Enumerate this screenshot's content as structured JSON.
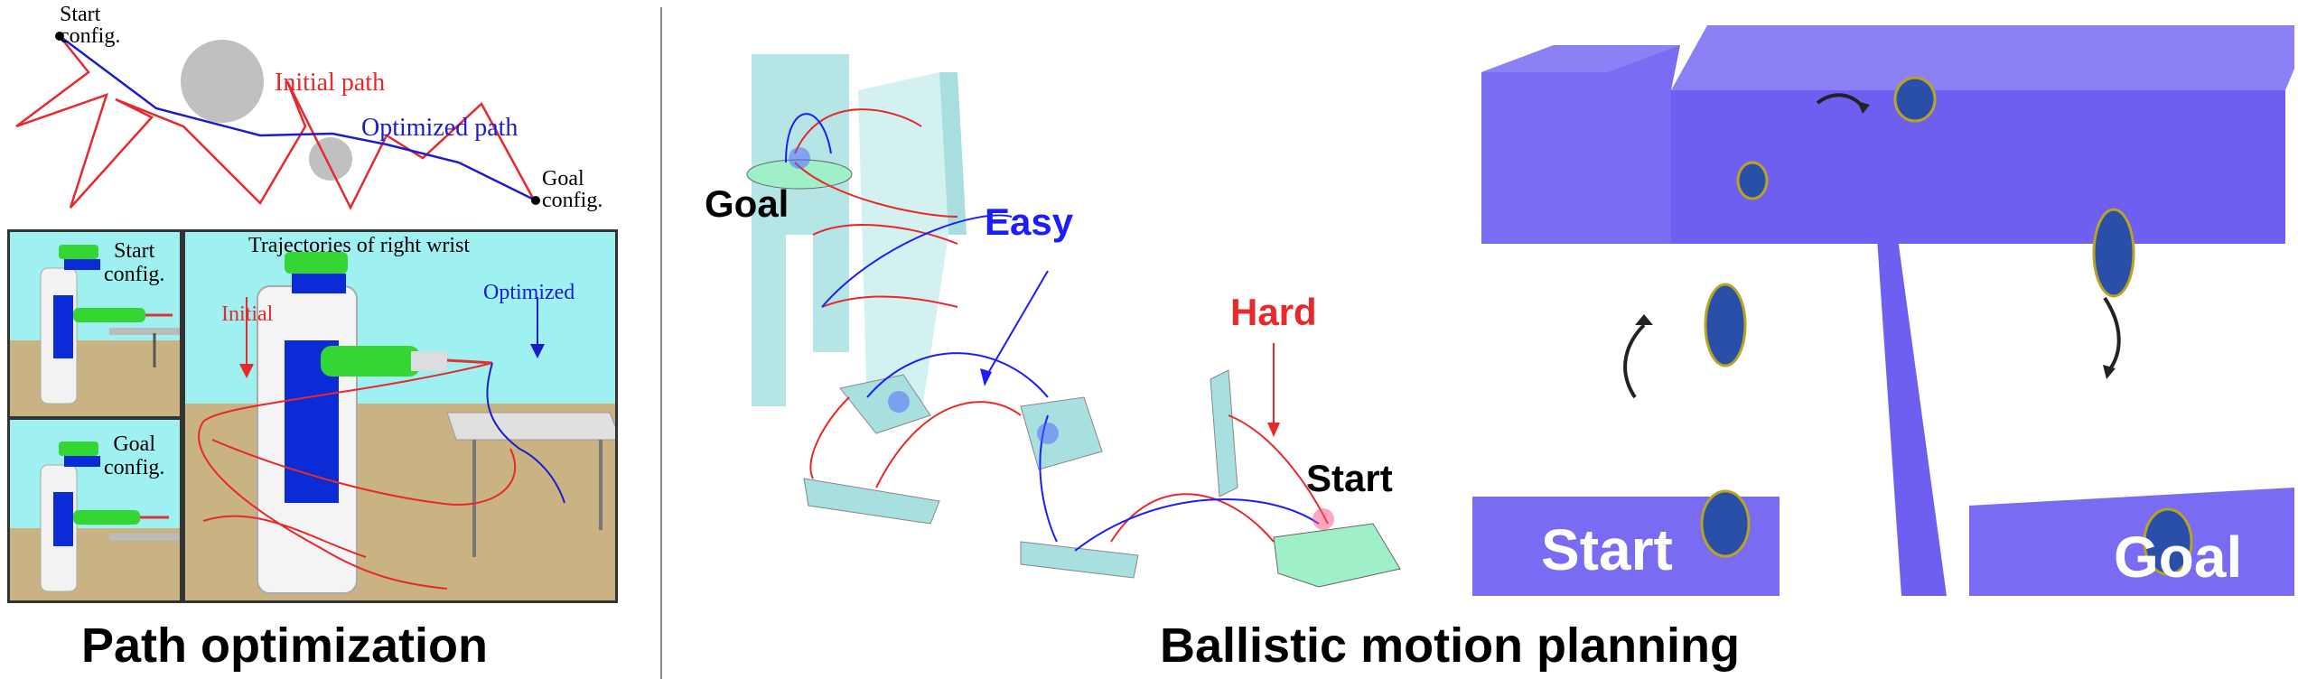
{
  "left_figure": {
    "path_diagram": {
      "start_label_line1": "Start",
      "start_label_line2": "config.",
      "initial_path_label": "Initial path",
      "optimized_path_label": "Optimized path",
      "goal_label_line1": "Goal",
      "goal_label_line2": "config.",
      "initial_color": "#e8282b",
      "optimized_color": "#1c1ccf"
    },
    "robot_panels": {
      "start_thumb_line1": "Start",
      "start_thumb_line2": "config.",
      "goal_thumb_line1": "Goal",
      "goal_thumb_line2": "config.",
      "trajectories_title": "Trajectories of right wrist",
      "initial_label": "Initial",
      "optimized_label": "Optimized",
      "sky_color": "#9ff0f0",
      "floor_color": "#c9b383"
    },
    "caption": "Path optimization"
  },
  "right_figure": {
    "platforms": {
      "goal_label": "Goal",
      "easy_label": "Easy",
      "hard_label": "Hard",
      "start_label": "Start",
      "easy_color": "#1c1cff",
      "hard_color": "#e8282b"
    },
    "character_scene": {
      "start_label": "Start",
      "goal_label": "Goal",
      "block_color": "#7a6cf2"
    },
    "caption": "Ballistic motion planning"
  }
}
